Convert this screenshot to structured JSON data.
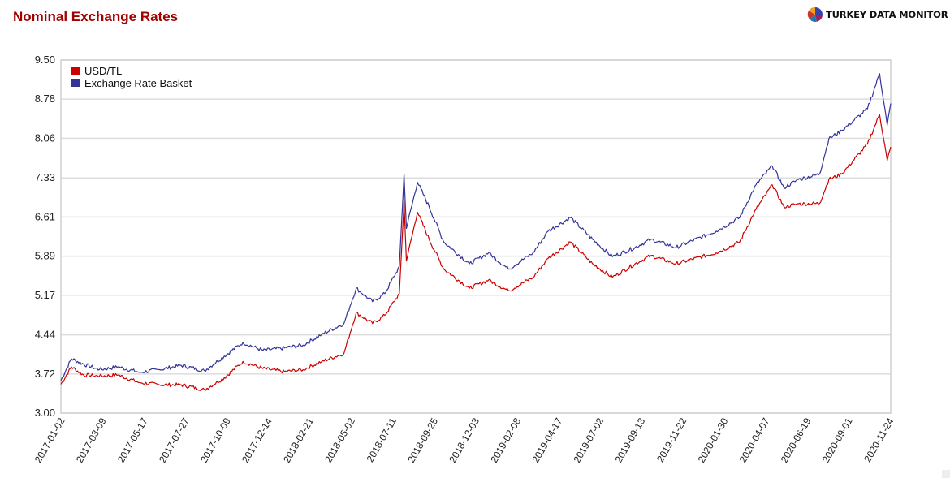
{
  "header": {
    "title": "Nominal Exchange Rates",
    "brand": "TURKEY DATA MONITOR"
  },
  "legend": {
    "items": [
      {
        "label": "USD/TL",
        "color": "#cc0000"
      },
      {
        "label": "Exchange Rate Basket",
        "color": "#333399"
      }
    ]
  },
  "colors": {
    "usd_tl": "#cc0000",
    "basket": "#333399",
    "title": "#a00000",
    "grid": "#dddddd"
  },
  "chart_data": {
    "type": "line",
    "title": "Nominal Exchange Rates",
    "xlabel": "",
    "ylabel": "",
    "ylim": [
      3.0,
      9.5
    ],
    "yticks": [
      "3.00",
      "3.72",
      "4.44",
      "5.17",
      "5.89",
      "6.61",
      "7.33",
      "8.06",
      "8.78",
      "9.50"
    ],
    "xticks": [
      "2017-01-02",
      "2017-03-09",
      "2017-05-17",
      "2017-07-27",
      "2017-10-09",
      "2017-12-14",
      "2018-02-21",
      "2018-05-02",
      "2018-07-11",
      "2018-09-25",
      "2018-12-03",
      "2019-02-08",
      "2019-04-17",
      "2019-07-02",
      "2019-09-13",
      "2019-11-22",
      "2020-01-30",
      "2020-04-07",
      "2020-06-19",
      "2020-09-01",
      "2020-11-24"
    ],
    "grid": true,
    "legend_position": "top-left inside",
    "series": [
      {
        "name": "USD/TL",
        "color": "#cc0000",
        "points": [
          [
            "2017-01-02",
            3.53
          ],
          [
            "2017-01-20",
            3.85
          ],
          [
            "2017-02-10",
            3.7
          ],
          [
            "2017-03-09",
            3.68
          ],
          [
            "2017-04-10",
            3.7
          ],
          [
            "2017-05-17",
            3.56
          ],
          [
            "2017-06-20",
            3.52
          ],
          [
            "2017-07-27",
            3.52
          ],
          [
            "2017-09-05",
            3.43
          ],
          [
            "2017-10-09",
            3.65
          ],
          [
            "2017-11-10",
            3.95
          ],
          [
            "2017-12-14",
            3.82
          ],
          [
            "2018-01-20",
            3.76
          ],
          [
            "2018-02-21",
            3.8
          ],
          [
            "2018-03-25",
            3.95
          ],
          [
            "2018-05-02",
            4.1
          ],
          [
            "2018-05-23",
            4.85
          ],
          [
            "2018-06-20",
            4.65
          ],
          [
            "2018-07-11",
            4.8
          ],
          [
            "2018-08-05",
            5.2
          ],
          [
            "2018-08-13",
            6.9
          ],
          [
            "2018-08-17",
            5.8
          ],
          [
            "2018-09-05",
            6.7
          ],
          [
            "2018-09-25",
            6.2
          ],
          [
            "2018-10-20",
            5.65
          ],
          [
            "2018-12-03",
            5.3
          ],
          [
            "2019-01-05",
            5.45
          ],
          [
            "2019-02-08",
            5.25
          ],
          [
            "2019-03-22",
            5.5
          ],
          [
            "2019-04-17",
            5.85
          ],
          [
            "2019-05-25",
            6.15
          ],
          [
            "2019-07-02",
            5.75
          ],
          [
            "2019-08-05",
            5.5
          ],
          [
            "2019-09-13",
            5.75
          ],
          [
            "2019-10-10",
            5.9
          ],
          [
            "2019-11-22",
            5.75
          ],
          [
            "2020-01-30",
            5.95
          ],
          [
            "2020-03-10",
            6.15
          ],
          [
            "2020-04-07",
            6.75
          ],
          [
            "2020-05-05",
            7.2
          ],
          [
            "2020-05-25",
            6.8
          ],
          [
            "2020-06-19",
            6.85
          ],
          [
            "2020-07-25",
            6.86
          ],
          [
            "2020-08-10",
            7.3
          ],
          [
            "2020-09-01",
            7.4
          ],
          [
            "2020-10-15",
            7.95
          ],
          [
            "2020-11-05",
            8.5
          ],
          [
            "2020-11-18",
            7.65
          ],
          [
            "2020-11-24",
            7.9
          ]
        ]
      },
      {
        "name": "Exchange Rate Basket",
        "color": "#333399",
        "points": [
          [
            "2017-01-02",
            3.6
          ],
          [
            "2017-01-20",
            4.0
          ],
          [
            "2017-02-10",
            3.9
          ],
          [
            "2017-03-09",
            3.8
          ],
          [
            "2017-04-10",
            3.85
          ],
          [
            "2017-05-17",
            3.75
          ],
          [
            "2017-06-20",
            3.8
          ],
          [
            "2017-07-27",
            3.88
          ],
          [
            "2017-09-05",
            3.78
          ],
          [
            "2017-10-09",
            4.05
          ],
          [
            "2017-11-10",
            4.3
          ],
          [
            "2017-12-14",
            4.15
          ],
          [
            "2018-01-20",
            4.2
          ],
          [
            "2018-02-21",
            4.25
          ],
          [
            "2018-03-25",
            4.45
          ],
          [
            "2018-05-02",
            4.65
          ],
          [
            "2018-05-23",
            5.3
          ],
          [
            "2018-06-20",
            5.05
          ],
          [
            "2018-07-11",
            5.2
          ],
          [
            "2018-08-05",
            5.7
          ],
          [
            "2018-08-13",
            7.4
          ],
          [
            "2018-08-17",
            6.4
          ],
          [
            "2018-09-05",
            7.25
          ],
          [
            "2018-09-25",
            6.8
          ],
          [
            "2018-10-20",
            6.15
          ],
          [
            "2018-12-03",
            5.75
          ],
          [
            "2019-01-05",
            5.95
          ],
          [
            "2019-02-08",
            5.65
          ],
          [
            "2019-03-22",
            5.95
          ],
          [
            "2019-04-17",
            6.35
          ],
          [
            "2019-05-25",
            6.6
          ],
          [
            "2019-07-02",
            6.2
          ],
          [
            "2019-08-05",
            5.88
          ],
          [
            "2019-09-13",
            6.05
          ],
          [
            "2019-10-10",
            6.2
          ],
          [
            "2019-11-22",
            6.05
          ],
          [
            "2020-01-30",
            6.35
          ],
          [
            "2020-03-10",
            6.6
          ],
          [
            "2020-04-07",
            7.2
          ],
          [
            "2020-05-05",
            7.55
          ],
          [
            "2020-05-25",
            7.15
          ],
          [
            "2020-06-19",
            7.3
          ],
          [
            "2020-07-25",
            7.4
          ],
          [
            "2020-08-10",
            8.05
          ],
          [
            "2020-09-01",
            8.2
          ],
          [
            "2020-10-15",
            8.6
          ],
          [
            "2020-11-05",
            9.25
          ],
          [
            "2020-11-18",
            8.3
          ],
          [
            "2020-11-24",
            8.7
          ]
        ]
      }
    ]
  }
}
